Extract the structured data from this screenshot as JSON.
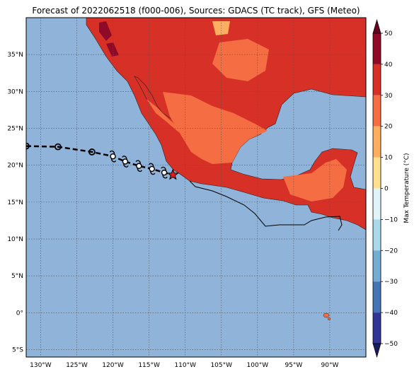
{
  "title": "Forecast of 2022062518 (f000-006), Sources: GDACS (TC track), GFS (Meteo)",
  "map": {
    "lon_range": [
      -132,
      -85
    ],
    "lat_range": [
      -6,
      40
    ],
    "lon_ticks": [
      "130°W",
      "125°W",
      "120°W",
      "115°W",
      "110°W",
      "105°W",
      "100°W",
      "95°W",
      "90°W"
    ],
    "lat_ticks": [
      "35°N",
      "30°N",
      "25°N",
      "20°N",
      "15°N",
      "10°N",
      "5°N",
      "0°",
      "5°S"
    ],
    "ocean_color": "#8fb3d9"
  },
  "colorbar": {
    "label": "Max Temperature (°C)",
    "ticks": [
      "50",
      "40",
      "30",
      "20",
      "10",
      "0",
      "−10",
      "−20",
      "−30",
      "−40",
      "−50"
    ],
    "colors": [
      "#8e0a26",
      "#d73027",
      "#f46d43",
      "#fdae61",
      "#fee090",
      "#e0f3f8",
      "#abd9e9",
      "#74add1",
      "#4575b4",
      "#313695"
    ]
  },
  "track": {
    "past_points": [
      {
        "lon": -132,
        "lat": 22.6
      },
      {
        "lon": -127.6,
        "lat": 22.5
      },
      {
        "lon": -122.9,
        "lat": 21.8
      }
    ],
    "symbol_points": [
      {
        "lon": -120.0,
        "lat": 21.2
      },
      {
        "lon": -118.3,
        "lat": 20.5
      },
      {
        "lon": -116.4,
        "lat": 19.9
      },
      {
        "lon": -114.6,
        "lat": 19.5
      },
      {
        "lon": -112.9,
        "lat": 19.0
      }
    ],
    "current": {
      "lon": -111.7,
      "lat": 18.7
    },
    "star_color": "#e31a1c"
  }
}
